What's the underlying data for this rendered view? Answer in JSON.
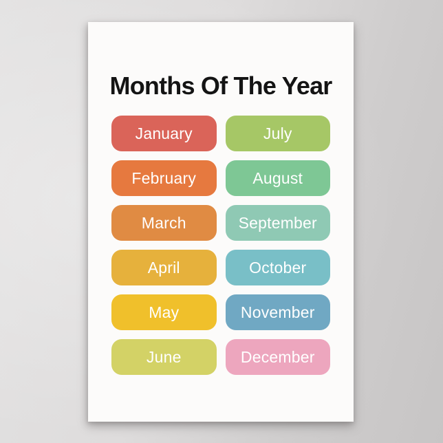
{
  "poster": {
    "title": "Months Of The Year"
  },
  "months": [
    {
      "name": "January",
      "color": "#da6459"
    },
    {
      "name": "February",
      "color": "#e6793f"
    },
    {
      "name": "March",
      "color": "#e08b43"
    },
    {
      "name": "April",
      "color": "#e6b13c"
    },
    {
      "name": "May",
      "color": "#f0c02b"
    },
    {
      "name": "June",
      "color": "#d3d266"
    },
    {
      "name": "July",
      "color": "#a6c766"
    },
    {
      "name": "August",
      "color": "#7ec795"
    },
    {
      "name": "September",
      "color": "#8fc9b4"
    },
    {
      "name": "October",
      "color": "#79bfc7"
    },
    {
      "name": "November",
      "color": "#70a8c3"
    },
    {
      "name": "December",
      "color": "#eda6be"
    }
  ],
  "colors": {
    "wall_left": "#e3e2e2",
    "wall_right": "#c7c5c5",
    "poster_background": "#fcfbfa",
    "title_text": "#141414",
    "pill_text": "#ffffff"
  }
}
